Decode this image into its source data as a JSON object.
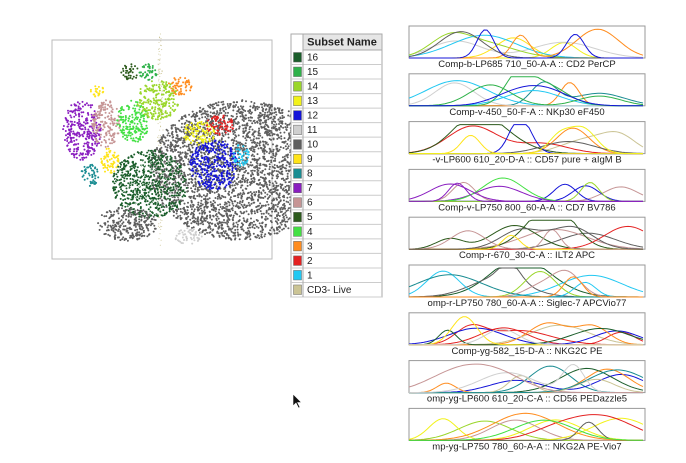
{
  "legend": {
    "header": "Subset Name",
    "rows": [
      {
        "label": "16",
        "color": "#1b5e2b"
      },
      {
        "label": "15",
        "color": "#2fb24a"
      },
      {
        "label": "14",
        "color": "#9ad62a"
      },
      {
        "label": "13",
        "color": "#f2f21a"
      },
      {
        "label": "12",
        "color": "#1414d8"
      },
      {
        "label": "11",
        "color": "#cfcfcf"
      },
      {
        "label": "10",
        "color": "#5e5e5e"
      },
      {
        "label": "9",
        "color": "#ffe41a"
      },
      {
        "label": "8",
        "color": "#1a8c92"
      },
      {
        "label": "7",
        "color": "#8a1ec0"
      },
      {
        "label": "6",
        "color": "#c69595"
      },
      {
        "label": "5",
        "color": "#2c5a1c"
      },
      {
        "label": "4",
        "color": "#43e043"
      },
      {
        "label": "3",
        "color": "#ff8c1e"
      },
      {
        "label": "2",
        "color": "#e42222"
      },
      {
        "label": "1",
        "color": "#22c8f2"
      },
      {
        "label": "CD3- Live",
        "color": "#cbc495"
      }
    ]
  },
  "histograms": [
    {
      "label": "Comp-b-LP685 710_50-A-A :: CD2 PerCP"
    },
    {
      "label": "Comp-v-450_50-F-A :: NKp30 eF450"
    },
    {
      "label": "-v-LP600 610_20-D-A :: CD57 pure + aIgM B"
    },
    {
      "label": "Comp-v-LP750 800_60-A-A :: CD7 BV786"
    },
    {
      "label": "Comp-r-670_30-C-A :: ILT2 APC"
    },
    {
      "label": "omp-r-LP750 780_60-A-A :: Siglec-7 APCVio77"
    },
    {
      "label": "Comp-yg-582_15-D-A :: NKG2C PE"
    },
    {
      "label": "omp-yg-LP600 610_20-C-A :: CD56 PEDazzle5"
    },
    {
      "label": "mp-yg-LP750 780_60-A-A :: NKG2A PE-Vio7"
    }
  ]
}
